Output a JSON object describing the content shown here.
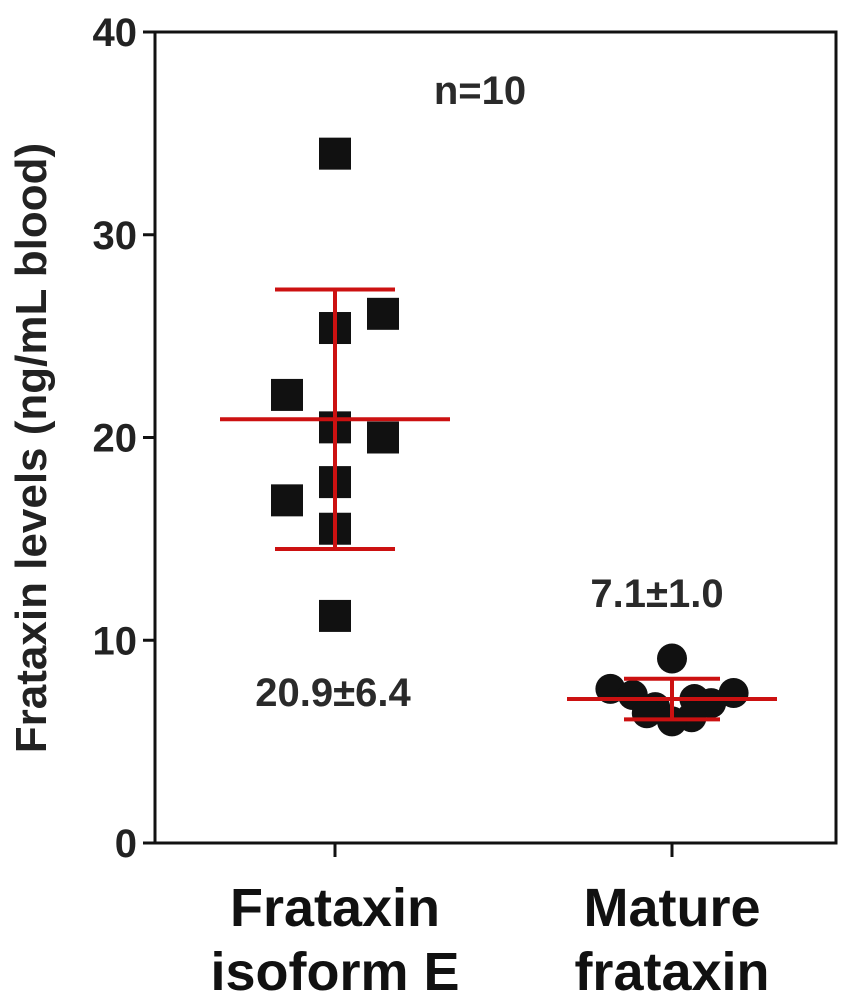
{
  "chart_data": {
    "type": "scatter",
    "title": "",
    "xlabel": "",
    "ylabel": "Frataxin levels (ng/mL blood)",
    "ylim": [
      0,
      40
    ],
    "yticks": [
      0,
      10,
      20,
      30,
      40
    ],
    "grid": false,
    "categories": [
      {
        "line1": "Frataxin",
        "line2": "isoform E"
      },
      {
        "line1": "Mature",
        "line2": "frataxin"
      }
    ],
    "series": [
      {
        "category": 0,
        "marker": "square",
        "values": [
          34,
          26.1,
          25.4,
          22.1,
          20.5,
          20.0,
          17.8,
          16.9,
          15.5,
          11.2
        ],
        "offsets": [
          0,
          1.6,
          0,
          -1.6,
          0,
          1.6,
          0,
          -1.6,
          0,
          0
        ],
        "mean": 20.9,
        "sd": 6.4,
        "label": "20.9±6.4"
      },
      {
        "category": 1,
        "marker": "circle",
        "values": [
          9.1,
          7.6,
          7.4,
          7.3,
          7.1,
          6.9,
          6.7,
          6.4,
          6.2,
          6.0
        ],
        "offsets": [
          0,
          -2.2,
          2.2,
          -1.4,
          0.8,
          1.4,
          -0.6,
          -0.9,
          0.7,
          0
        ],
        "mean": 7.1,
        "sd": 1.0,
        "label": "7.1±1.0"
      }
    ],
    "annotations": [
      "n=10"
    ],
    "colors": {
      "points": "#111111",
      "error_bars": "#cc1111",
      "axis": "#111111"
    }
  }
}
